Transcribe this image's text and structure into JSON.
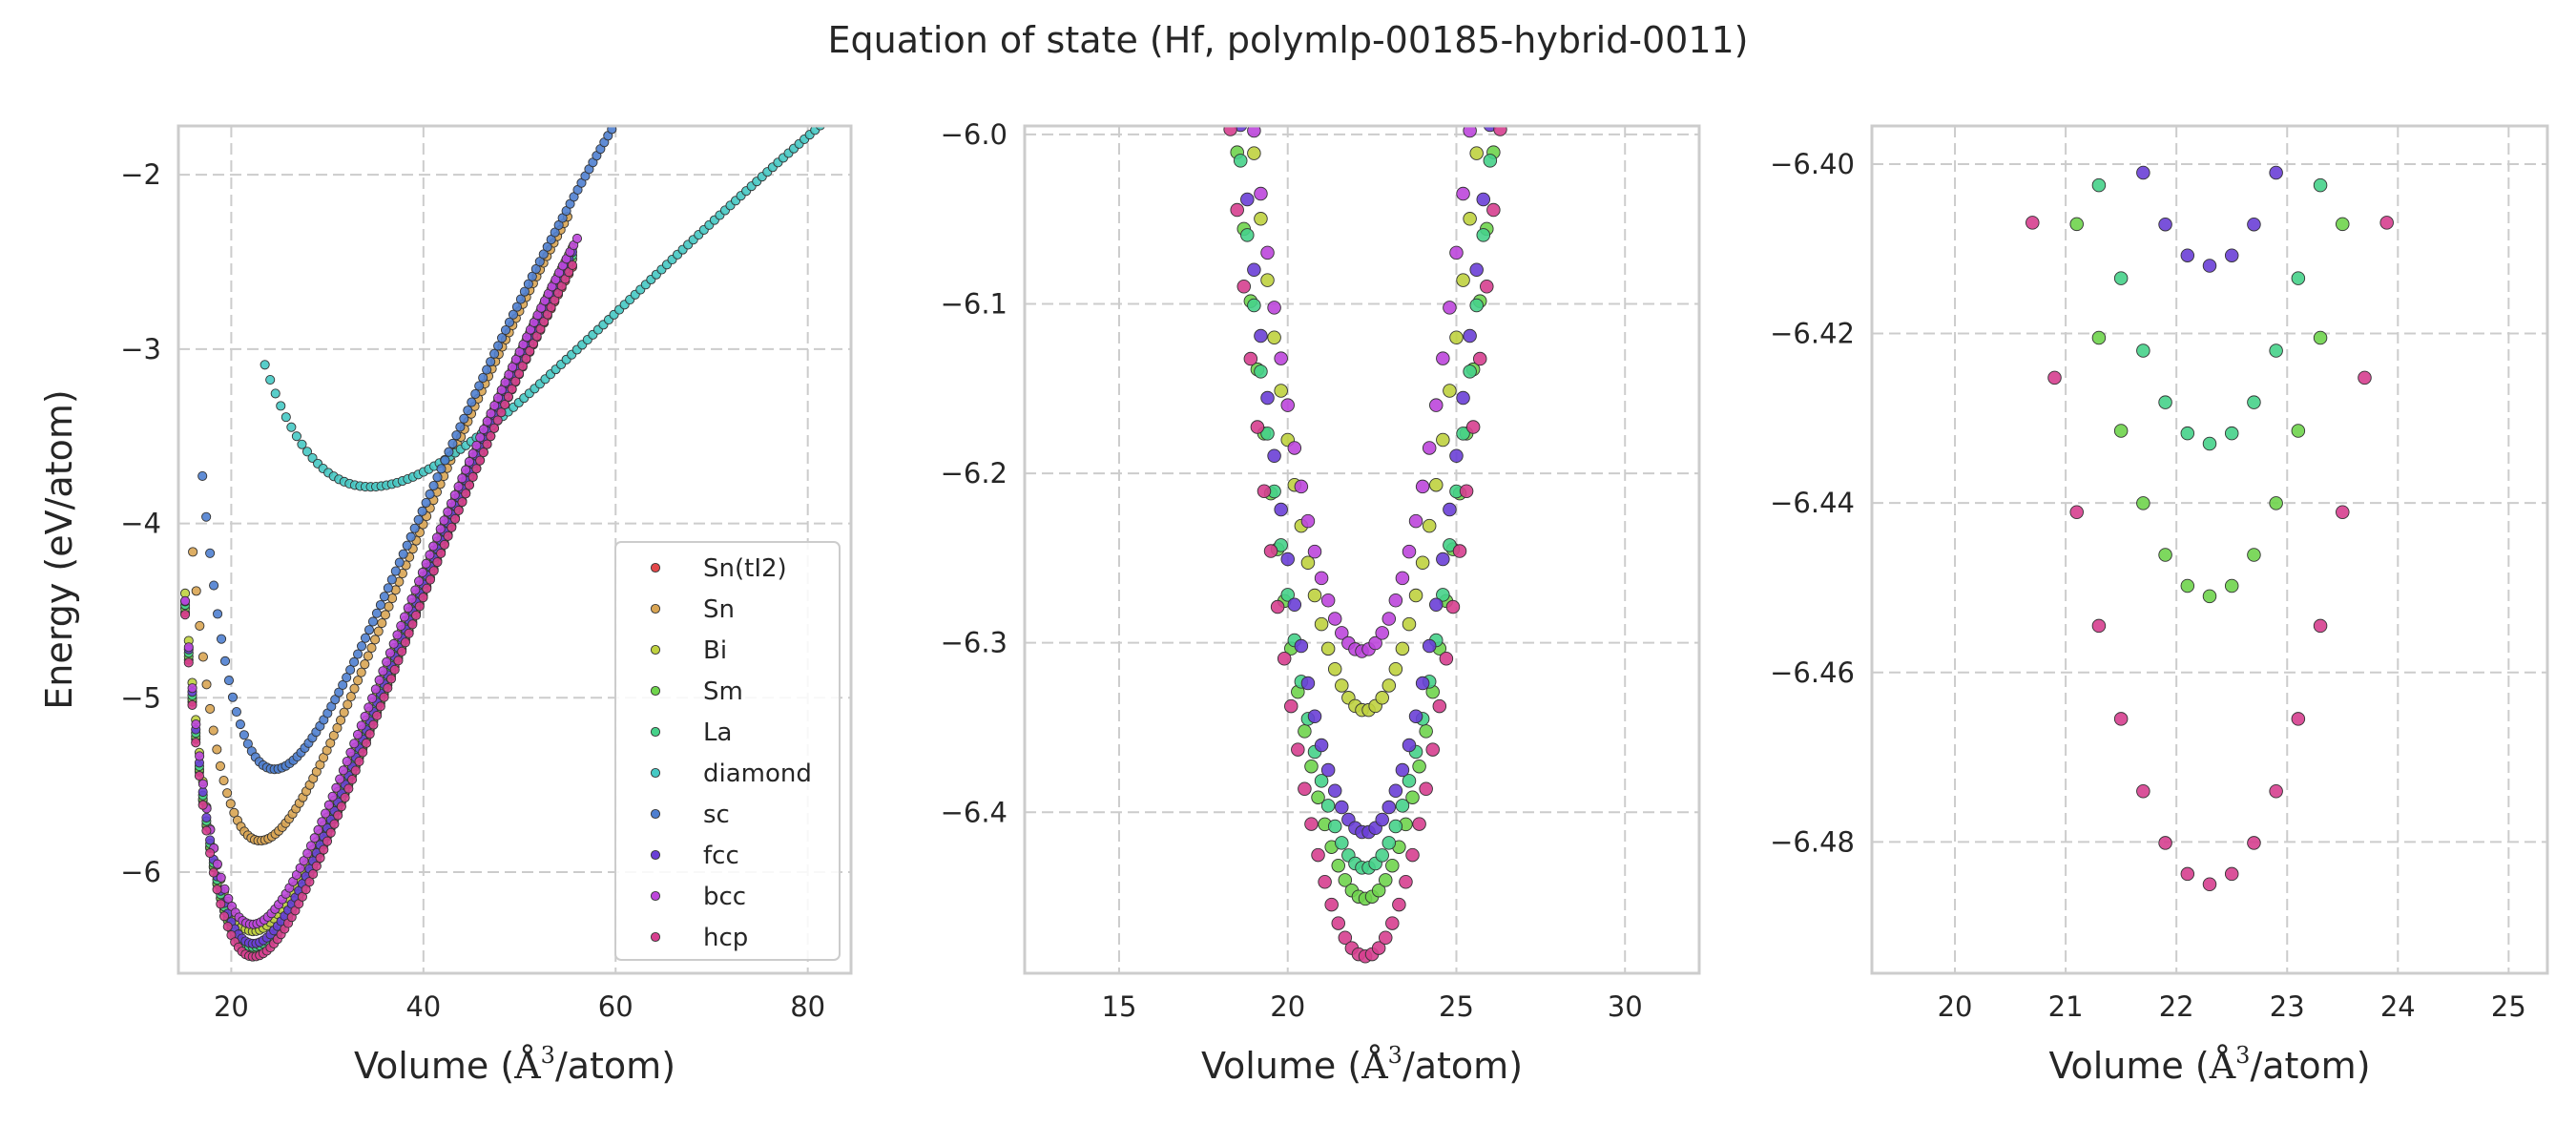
{
  "suptitle": "Equation of state (Hf, polymlp-00185-hybrid-0011)",
  "x_label_prefix": "Volume (",
  "x_label_angstrom": "Å",
  "x_label_sup": "3",
  "x_label_suffix": "/atom)",
  "colors": {
    "Sn(tI2)": "#e2484a",
    "Sn": "#d9a553",
    "Bi": "#bfd13f",
    "Sm": "#6fd44c",
    "La": "#46d189",
    "diamond": "#46c9c4",
    "sc": "#4f7fd0",
    "fcc": "#6a3fd6",
    "bcc": "#bd46db",
    "hcp": "#d63f8f"
  },
  "legend": [
    "Sn(tI2)",
    "Sn",
    "Bi",
    "Sm",
    "La",
    "diamond",
    "sc",
    "fcc",
    "bcc",
    "hcp"
  ],
  "chart_data": [
    {
      "type": "scatter",
      "ylabel": "Energy (eV/atom)",
      "xlim": [
        14.5,
        84.5
      ],
      "ylim": [
        -6.58,
        -1.72
      ],
      "xticks": [
        20,
        40,
        60,
        80
      ],
      "yticks": [
        -6,
        -5,
        -4,
        -3,
        -2
      ],
      "xtick_labels": [
        "20",
        "40",
        "60",
        "80"
      ],
      "ytick_labels": [
        "−6",
        "−5",
        "−4",
        "−3",
        "−2"
      ],
      "grid": true,
      "legend_position": "lower-right",
      "series": [
        {
          "name": "Sn(tI2)",
          "eos": {
            "v0": 22.3,
            "e0": -6.45,
            "b": 0.85,
            "bp": 4.5,
            "vmin": 15.2,
            "vmax": 55.5,
            "n": 110
          }
        },
        {
          "name": "Sn",
          "eos": {
            "v0": 23.0,
            "e0": -5.82,
            "b": 0.8,
            "bp": 4.5,
            "vmin": 16.0,
            "vmax": 55.0,
            "n": 110
          }
        },
        {
          "name": "Bi",
          "eos": {
            "v0": 22.3,
            "e0": -6.34,
            "b": 0.85,
            "bp": 4.5,
            "vmin": 15.2,
            "vmax": 55.5,
            "n": 110
          }
        },
        {
          "name": "Sm",
          "eos": {
            "v0": 22.3,
            "e0": -6.45,
            "b": 0.86,
            "bp": 4.5,
            "vmin": 15.2,
            "vmax": 55.5,
            "n": 110
          }
        },
        {
          "name": "La",
          "eos": {
            "v0": 22.3,
            "e0": -6.43,
            "b": 0.86,
            "bp": 4.5,
            "vmin": 15.2,
            "vmax": 55.5,
            "n": 110
          }
        },
        {
          "name": "diamond",
          "eos": {
            "v0": 34.5,
            "e0": -3.79,
            "b": 0.24,
            "bp": 3.2,
            "vmin": 23.5,
            "vmax": 83.5,
            "n": 110
          }
        },
        {
          "name": "sc",
          "eos": {
            "v0": 24.5,
            "e0": -5.41,
            "b": 0.75,
            "bp": 4.5,
            "vmin": 17.0,
            "vmax": 60.0,
            "n": 110
          }
        },
        {
          "name": "fcc",
          "eos": {
            "v0": 22.3,
            "e0": -6.41,
            "b": 0.86,
            "bp": 4.5,
            "vmin": 15.2,
            "vmax": 55.5,
            "n": 110
          }
        },
        {
          "name": "bcc",
          "eos": {
            "v0": 22.2,
            "e0": -6.3,
            "b": 0.84,
            "bp": 4.5,
            "vmin": 15.2,
            "vmax": 56.0,
            "n": 110
          }
        },
        {
          "name": "hcp",
          "eos": {
            "v0": 22.3,
            "e0": -6.485,
            "b": 0.86,
            "bp": 4.5,
            "vmin": 15.2,
            "vmax": 55.5,
            "n": 110
          }
        }
      ]
    },
    {
      "type": "scatter",
      "ylabel": "",
      "xlim": [
        12.2,
        32.2
      ],
      "ylim": [
        -6.495,
        -5.995
      ],
      "xticks": [
        15,
        20,
        25,
        30
      ],
      "yticks": [
        -6.4,
        -6.3,
        -6.2,
        -6.1,
        -6.0
      ],
      "xtick_labels": [
        "15",
        "20",
        "25",
        "30"
      ],
      "ytick_labels": [
        "−6.4",
        "−6.3",
        "−6.2",
        "−6.1",
        "−6.0"
      ],
      "grid": true,
      "series": [
        {
          "name": "Bi",
          "parabola": {
            "v0": 22.3,
            "e0": -6.34,
            "k": 0.0302,
            "vmin": 18.2,
            "vmax": 28.6,
            "step": 0.2
          }
        },
        {
          "name": "Sm",
          "parabola": {
            "v0": 22.3,
            "e0": -6.451,
            "k": 0.0305,
            "vmin": 17.7,
            "vmax": 28.9,
            "step": 0.2
          }
        },
        {
          "name": "La",
          "parabola": {
            "v0": 22.3,
            "e0": -6.433,
            "k": 0.0305,
            "vmin": 17.8,
            "vmax": 28.9,
            "step": 0.2
          }
        },
        {
          "name": "fcc",
          "parabola": {
            "v0": 22.3,
            "e0": -6.412,
            "k": 0.0305,
            "vmin": 17.8,
            "vmax": 28.9,
            "step": 0.2
          }
        },
        {
          "name": "bcc",
          "parabola": {
            "v0": 22.2,
            "e0": -6.305,
            "k": 0.03,
            "vmin": 18.0,
            "vmax": 29.0,
            "step": 0.2
          }
        },
        {
          "name": "hcp",
          "parabola": {
            "v0": 22.3,
            "e0": -6.485,
            "k": 0.0305,
            "vmin": 17.7,
            "vmax": 28.9,
            "step": 0.2
          }
        }
      ]
    },
    {
      "type": "scatter",
      "ylabel": "",
      "xlim": [
        19.25,
        25.35
      ],
      "ylim": [
        -6.4955,
        -6.3955
      ],
      "xticks": [
        20,
        21,
        22,
        23,
        24,
        25
      ],
      "yticks": [
        -6.48,
        -6.46,
        -6.44,
        -6.42,
        -6.4
      ],
      "xtick_labels": [
        "20",
        "21",
        "22",
        "23",
        "24",
        "25"
      ],
      "ytick_labels": [
        "−6.48",
        "−6.46",
        "−6.44",
        "−6.42",
        "−6.40"
      ],
      "grid": true,
      "series": [
        {
          "name": "Sm",
          "parabola": {
            "v0": 22.3,
            "e0": -6.451,
            "k": 0.0305,
            "vmin": 20.1,
            "vmax": 24.5,
            "step": 0.2
          }
        },
        {
          "name": "La",
          "parabola": {
            "v0": 22.3,
            "e0": -6.433,
            "k": 0.0305,
            "vmin": 20.1,
            "vmax": 24.5,
            "step": 0.2
          }
        },
        {
          "name": "fcc",
          "parabola": {
            "v0": 22.3,
            "e0": -6.412,
            "k": 0.0305,
            "vmin": 20.1,
            "vmax": 24.5,
            "step": 0.2
          }
        },
        {
          "name": "hcp",
          "parabola": {
            "v0": 22.3,
            "e0": -6.485,
            "k": 0.0305,
            "vmin": 20.1,
            "vmax": 24.5,
            "step": 0.2
          }
        }
      ]
    }
  ]
}
